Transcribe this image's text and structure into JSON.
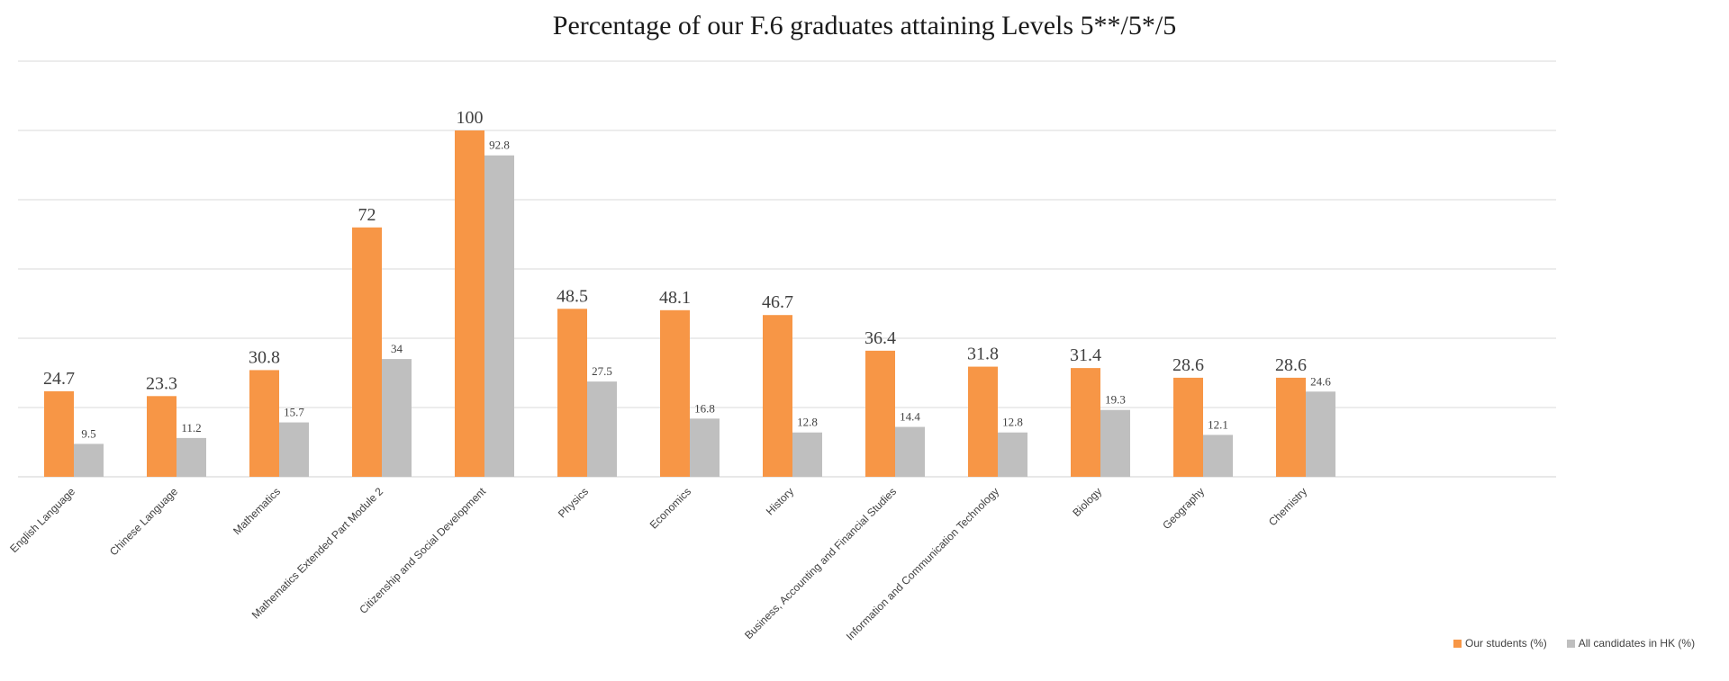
{
  "chart_data": {
    "type": "bar",
    "title": "Percentage of our F.6 graduates attaining Levels 5**/5*/5",
    "categories": [
      "English Language",
      "Chinese Language",
      "Mathematics",
      "Mathematics Extended Part Module 2",
      "Citizenship and Social Development",
      "Physics",
      "Economics",
      "History",
      "Business, Accounting and Financial Studies",
      "Information and Communication Technology",
      "Biology",
      "Geography",
      "Chemistry"
    ],
    "series": [
      {
        "name": "Our students (%)",
        "color": "#f79646",
        "values": [
          24.7,
          23.3,
          30.8,
          72,
          100,
          48.5,
          48.1,
          46.7,
          36.4,
          31.8,
          31.4,
          28.6,
          28.6
        ]
      },
      {
        "name": "All candidates in HK (%)",
        "color": "#bfbfbf",
        "values": [
          9.5,
          11.2,
          15.7,
          34,
          92.8,
          27.5,
          16.8,
          12.8,
          14.4,
          12.8,
          19.3,
          12.1,
          24.6
        ]
      }
    ],
    "ylim": [
      0,
      120
    ],
    "gridlines": [
      0,
      20,
      40,
      60,
      80,
      100,
      120
    ],
    "grid": true,
    "y_axis_labels_shown": false,
    "legend_position": "bottom-right",
    "data_labels": true
  }
}
